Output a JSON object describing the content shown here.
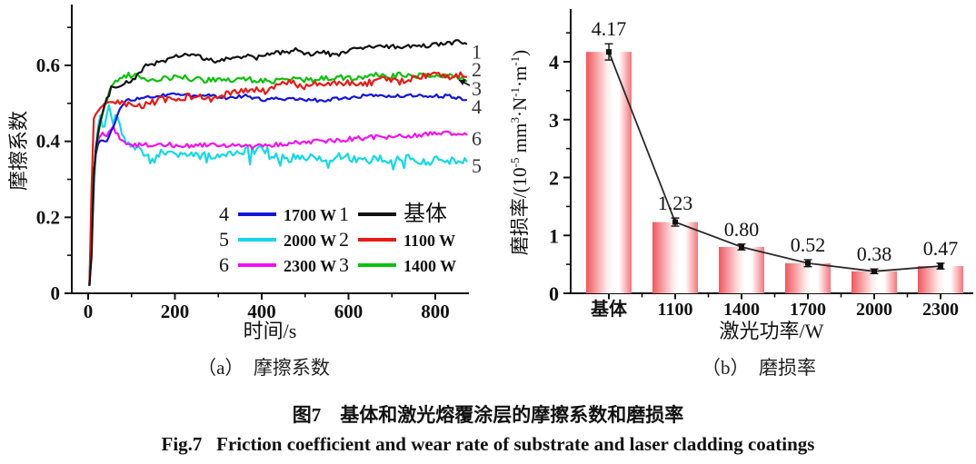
{
  "captions": {
    "a": "（a）　摩擦系数",
    "b": "（b）　磨损率",
    "zh": "图7　基体和激光熔覆涂层的摩擦系数和磨损率",
    "en": "Fig.7   Friction coefficient and wear rate of substrate and laser cladding coatings"
  },
  "chart_data": [
    {
      "id": "friction",
      "type": "line",
      "title": "(a) 摩擦系数",
      "xlabel": "时间/s",
      "ylabel": "摩擦系数",
      "xlim": [
        0,
        880
      ],
      "ylim": [
        0,
        0.75
      ],
      "xticks": [
        [
          0,
          "0"
        ],
        [
          200,
          "200"
        ],
        [
          400,
          "400"
        ],
        [
          600,
          "600"
        ],
        [
          800,
          "800"
        ]
      ],
      "xminor": [
        100,
        300,
        500,
        700
      ],
      "yticks": [
        [
          0,
          "0"
        ],
        [
          0.2,
          "0.2"
        ],
        [
          0.4,
          "0.4"
        ],
        [
          0.6,
          "0.6"
        ]
      ],
      "yminor": [
        0.1,
        0.3,
        0.5,
        0.7
      ],
      "grid": false,
      "legend_position": "inside-lower-right",
      "legend_columns": [
        [
          {
            "num": "4",
            "label": "1700 W",
            "color": "#1414dd"
          },
          {
            "num": "5",
            "label": "2000 W",
            "color": "#12d8e8"
          },
          {
            "num": "6",
            "label": "2300 W",
            "color": "#f410f0"
          }
        ],
        [
          {
            "num": "1",
            "label": "基体",
            "color": "#111111",
            "big": true
          },
          {
            "num": "2",
            "label": "1100 W",
            "color": "#e81a17"
          },
          {
            "num": "3",
            "label": "1400 W",
            "color": "#0bc20b"
          }
        ]
      ],
      "end_labels": [
        {
          "text": "1",
          "v": 0.637
        },
        {
          "text": "2",
          "v": 0.59
        },
        {
          "text": "3",
          "v": 0.54,
          "arrow": true
        },
        {
          "text": "4",
          "v": 0.492
        },
        {
          "text": "6",
          "v": 0.409
        },
        {
          "text": "5",
          "v": 0.337
        }
      ],
      "series": [
        {
          "name": "2000 W",
          "num": 5,
          "color": "#12d8e8",
          "noise": 0.011,
          "spike": true,
          "seed": 5,
          "keypoints": [
            [
              3,
              0.02
            ],
            [
              9,
              0.14
            ],
            [
              14,
              0.3
            ],
            [
              20,
              0.42
            ],
            [
              28,
              0.47
            ],
            [
              35,
              0.43
            ],
            [
              42,
              0.47
            ],
            [
              50,
              0.5
            ],
            [
              58,
              0.44
            ],
            [
              66,
              0.48
            ],
            [
              75,
              0.43
            ],
            [
              85,
              0.4
            ],
            [
              100,
              0.39
            ],
            [
              120,
              0.375
            ],
            [
              140,
              0.365
            ],
            [
              160,
              0.37
            ],
            [
              190,
              0.368
            ],
            [
              220,
              0.37
            ],
            [
              250,
              0.365
            ],
            [
              280,
              0.36
            ],
            [
              310,
              0.37
            ],
            [
              340,
              0.365
            ],
            [
              370,
              0.375
            ],
            [
              400,
              0.38
            ],
            [
              430,
              0.365
            ],
            [
              460,
              0.355
            ],
            [
              490,
              0.36
            ],
            [
              520,
              0.36
            ],
            [
              550,
              0.355
            ],
            [
              580,
              0.36
            ],
            [
              610,
              0.355
            ],
            [
              640,
              0.35
            ],
            [
              670,
              0.352
            ],
            [
              700,
              0.35
            ],
            [
              730,
              0.355
            ],
            [
              760,
              0.35
            ],
            [
              790,
              0.345
            ],
            [
              820,
              0.355
            ],
            [
              850,
              0.345
            ],
            [
              875,
              0.35
            ]
          ]
        },
        {
          "name": "2300 W",
          "num": 6,
          "color": "#f410f0",
          "noise": 0.006,
          "spike": false,
          "seed": 6,
          "keypoints": [
            [
              3,
              0.02
            ],
            [
              6,
              0.13
            ],
            [
              10,
              0.135
            ],
            [
              13,
              0.3
            ],
            [
              18,
              0.38
            ],
            [
              25,
              0.41
            ],
            [
              32,
              0.42
            ],
            [
              40,
              0.41
            ],
            [
              48,
              0.43
            ],
            [
              56,
              0.44
            ],
            [
              65,
              0.42
            ],
            [
              75,
              0.405
            ],
            [
              90,
              0.395
            ],
            [
              110,
              0.39
            ],
            [
              140,
              0.39
            ],
            [
              170,
              0.392
            ],
            [
              200,
              0.39
            ],
            [
              230,
              0.388
            ],
            [
              260,
              0.39
            ],
            [
              290,
              0.392
            ],
            [
              320,
              0.39
            ],
            [
              350,
              0.39
            ],
            [
              380,
              0.385
            ],
            [
              410,
              0.39
            ],
            [
              440,
              0.392
            ],
            [
              470,
              0.395
            ],
            [
              500,
              0.4
            ],
            [
              530,
              0.4
            ],
            [
              560,
              0.402
            ],
            [
              590,
              0.405
            ],
            [
              620,
              0.408
            ],
            [
              650,
              0.41
            ],
            [
              680,
              0.412
            ],
            [
              710,
              0.412
            ],
            [
              740,
              0.415
            ],
            [
              770,
              0.418
            ],
            [
              800,
              0.42
            ],
            [
              830,
              0.42
            ],
            [
              855,
              0.422
            ],
            [
              875,
              0.42
            ]
          ]
        },
        {
          "name": "1700 W",
          "num": 4,
          "color": "#1414dd",
          "noise": 0.0045,
          "spike": false,
          "seed": 4,
          "keypoints": [
            [
              3,
              0.02
            ],
            [
              10,
              0.28
            ],
            [
              16,
              0.36
            ],
            [
              25,
              0.4
            ],
            [
              35,
              0.405
            ],
            [
              45,
              0.4
            ],
            [
              55,
              0.43
            ],
            [
              70,
              0.48
            ],
            [
              85,
              0.505
            ],
            [
              100,
              0.51
            ],
            [
              130,
              0.515
            ],
            [
              160,
              0.52
            ],
            [
              200,
              0.525
            ],
            [
              240,
              0.52
            ],
            [
              280,
              0.52
            ],
            [
              320,
              0.515
            ],
            [
              360,
              0.52
            ],
            [
              400,
              0.51
            ],
            [
              440,
              0.512
            ],
            [
              480,
              0.51
            ],
            [
              520,
              0.508
            ],
            [
              560,
              0.51
            ],
            [
              600,
              0.515
            ],
            [
              640,
              0.52
            ],
            [
              680,
              0.52
            ],
            [
              720,
              0.52
            ],
            [
              760,
              0.52
            ],
            [
              800,
              0.52
            ],
            [
              840,
              0.518
            ],
            [
              875,
              0.508
            ]
          ]
        },
        {
          "name": "1400 W",
          "num": 3,
          "color": "#0bc20b",
          "noise": 0.007,
          "spike": false,
          "seed": 3,
          "keypoints": [
            [
              3,
              0.02
            ],
            [
              10,
              0.25
            ],
            [
              18,
              0.38
            ],
            [
              28,
              0.45
            ],
            [
              40,
              0.5
            ],
            [
              55,
              0.545
            ],
            [
              70,
              0.565
            ],
            [
              90,
              0.575
            ],
            [
              120,
              0.57
            ],
            [
              150,
              0.56
            ],
            [
              180,
              0.565
            ],
            [
              210,
              0.57
            ],
            [
              240,
              0.565
            ],
            [
              270,
              0.56
            ],
            [
              300,
              0.565
            ],
            [
              330,
              0.56
            ],
            [
              360,
              0.565
            ],
            [
              390,
              0.56
            ],
            [
              420,
              0.558
            ],
            [
              450,
              0.56
            ],
            [
              480,
              0.565
            ],
            [
              510,
              0.56
            ],
            [
              540,
              0.565
            ],
            [
              570,
              0.57
            ],
            [
              600,
              0.565
            ],
            [
              630,
              0.57
            ],
            [
              660,
              0.575
            ],
            [
              690,
              0.57
            ],
            [
              720,
              0.575
            ],
            [
              750,
              0.57
            ],
            [
              780,
              0.575
            ],
            [
              810,
              0.572
            ],
            [
              840,
              0.575
            ],
            [
              875,
              0.562
            ]
          ]
        },
        {
          "name": "1100 W",
          "num": 2,
          "color": "#e81a17",
          "noise": 0.009,
          "spike": false,
          "seed": 2,
          "keypoints": [
            [
              3,
              0.02
            ],
            [
              7,
              0.2
            ],
            [
              10,
              0.44
            ],
            [
              15,
              0.47
            ],
            [
              22,
              0.48
            ],
            [
              35,
              0.49
            ],
            [
              50,
              0.5
            ],
            [
              70,
              0.5
            ],
            [
              90,
              0.495
            ],
            [
              110,
              0.49
            ],
            [
              140,
              0.5
            ],
            [
              170,
              0.51
            ],
            [
              200,
              0.508
            ],
            [
              230,
              0.52
            ],
            [
              260,
              0.515
            ],
            [
              290,
              0.51
            ],
            [
              320,
              0.525
            ],
            [
              350,
              0.53
            ],
            [
              380,
              0.535
            ],
            [
              410,
              0.53
            ],
            [
              440,
              0.55
            ],
            [
              470,
              0.555
            ],
            [
              500,
              0.545
            ],
            [
              530,
              0.55
            ],
            [
              560,
              0.55
            ],
            [
              590,
              0.555
            ],
            [
              620,
              0.55
            ],
            [
              650,
              0.555
            ],
            [
              680,
              0.565
            ],
            [
              710,
              0.555
            ],
            [
              740,
              0.565
            ],
            [
              770,
              0.57
            ],
            [
              800,
              0.575
            ],
            [
              830,
              0.57
            ],
            [
              850,
              0.575
            ],
            [
              875,
              0.577
            ]
          ]
        },
        {
          "name": "基体",
          "num": 1,
          "color": "#111111",
          "noise": 0.006,
          "spike": false,
          "seed": 1,
          "keypoints": [
            [
              3,
              0.02
            ],
            [
              8,
              0.1
            ],
            [
              14,
              0.35
            ],
            [
              25,
              0.44
            ],
            [
              40,
              0.5
            ],
            [
              55,
              0.545
            ],
            [
              75,
              0.55
            ],
            [
              95,
              0.555
            ],
            [
              115,
              0.575
            ],
            [
              135,
              0.6
            ],
            [
              160,
              0.608
            ],
            [
              185,
              0.615
            ],
            [
              210,
              0.625
            ],
            [
              240,
              0.63
            ],
            [
              270,
              0.615
            ],
            [
              300,
              0.61
            ],
            [
              330,
              0.62
            ],
            [
              360,
              0.625
            ],
            [
              390,
              0.62
            ],
            [
              420,
              0.63
            ],
            [
              450,
              0.635
            ],
            [
              480,
              0.64
            ],
            [
              510,
              0.63
            ],
            [
              540,
              0.635
            ],
            [
              570,
              0.625
            ],
            [
              600,
              0.64
            ],
            [
              630,
              0.645
            ],
            [
              660,
              0.65
            ],
            [
              690,
              0.648
            ],
            [
              720,
              0.65
            ],
            [
              750,
              0.648
            ],
            [
              780,
              0.652
            ],
            [
              810,
              0.655
            ],
            [
              840,
              0.66
            ],
            [
              860,
              0.665
            ],
            [
              875,
              0.655
            ]
          ]
        }
      ]
    },
    {
      "id": "wear",
      "type": "bar",
      "title": "(b) 磨损率",
      "xlabel": "激光功率/W",
      "ylabel": "磨损率/(10⁻⁵ mm³·N⁻¹·m⁻¹)",
      "ylabel_segments": [
        {
          "t": "磨损率/(10"
        },
        {
          "t": "-5",
          "sup": true
        },
        {
          "t": " mm"
        },
        {
          "t": "3",
          "sup": true
        },
        {
          "t": "·N"
        },
        {
          "t": "-1",
          "sup": true
        },
        {
          "t": "·m"
        },
        {
          "t": "-1",
          "sup": true
        },
        {
          "t": ")"
        }
      ],
      "categories": [
        "基体",
        "1100",
        "1400",
        "1700",
        "2000",
        "2300"
      ],
      "values": [
        4.17,
        1.23,
        0.8,
        0.52,
        0.38,
        0.47
      ],
      "value_labels": [
        "4.17",
        "1.23",
        "0.80",
        "0.52",
        "0.38",
        "0.47"
      ],
      "errors": [
        0.14,
        0.07,
        0.05,
        0.06,
        0.04,
        0.05
      ],
      "ylim": [
        0,
        4.9
      ],
      "yticks": [
        [
          0,
          "0"
        ],
        [
          1,
          "1"
        ],
        [
          2,
          "2"
        ],
        [
          3,
          "3"
        ],
        [
          4,
          "4"
        ]
      ],
      "yminor": [
        0.5,
        1.5,
        2.5,
        3.5,
        4.5
      ],
      "grid": false,
      "bar_edge_color": "#f0565e",
      "bar_mid_color": "#ffffff",
      "trend_line_color": "#2a2a2a"
    }
  ]
}
